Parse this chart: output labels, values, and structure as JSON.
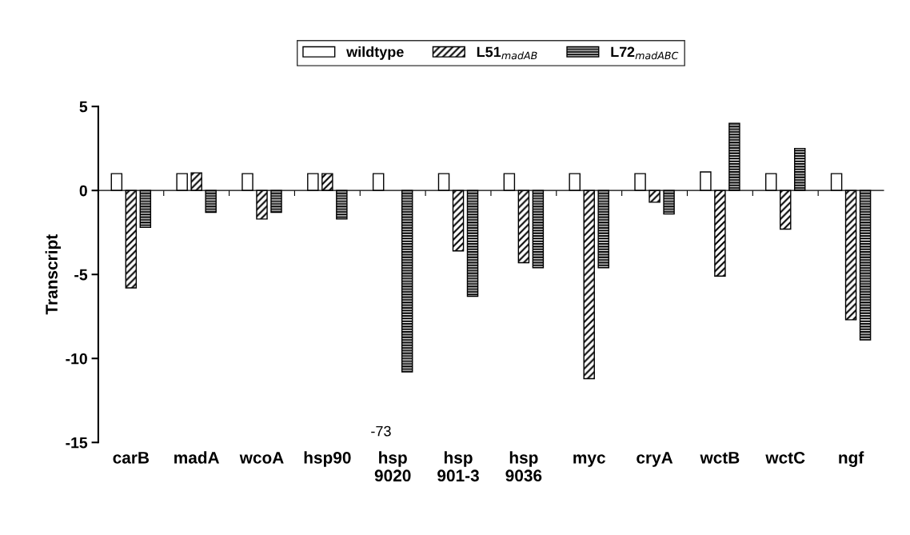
{
  "chart_data": {
    "type": "bar",
    "ylabel": "Transcript",
    "categories": [
      "carB",
      "madA",
      "wcoA",
      "hsp90",
      "hsp\n9020",
      "hsp\n901-3",
      "hsp\n9036",
      "myc",
      "cryA",
      "wctB",
      "wctC",
      "ngf"
    ],
    "series": [
      {
        "name": "wildtype",
        "color": "#ffffff",
        "values": [
          1,
          1,
          1,
          1,
          1,
          1,
          1,
          1,
          1,
          1.1,
          1,
          1
        ]
      },
      {
        "name": "L51$_{madAB}$",
        "color": "#000000",
        "values": [
          -5.8,
          1.05,
          -1.7,
          1,
          null,
          -3.6,
          -4.3,
          -11.2,
          -0.7,
          -5.1,
          -2.3,
          -7.7
        ]
      },
      {
        "name": "L72$_{madABC}$",
        "color": "#000000",
        "values": [
          -2.2,
          -1.3,
          -1.3,
          -1.7,
          -10.8,
          -6.3,
          -4.6,
          -4.6,
          -1.4,
          4.0,
          2.5,
          -8.9
        ]
      }
    ],
    "annotations": [
      "-73"
    ],
    "ylim": [
      -15,
      5
    ],
    "yticks": [
      -15,
      -10,
      -5,
      0,
      5
    ],
    "legend": "top"
  }
}
